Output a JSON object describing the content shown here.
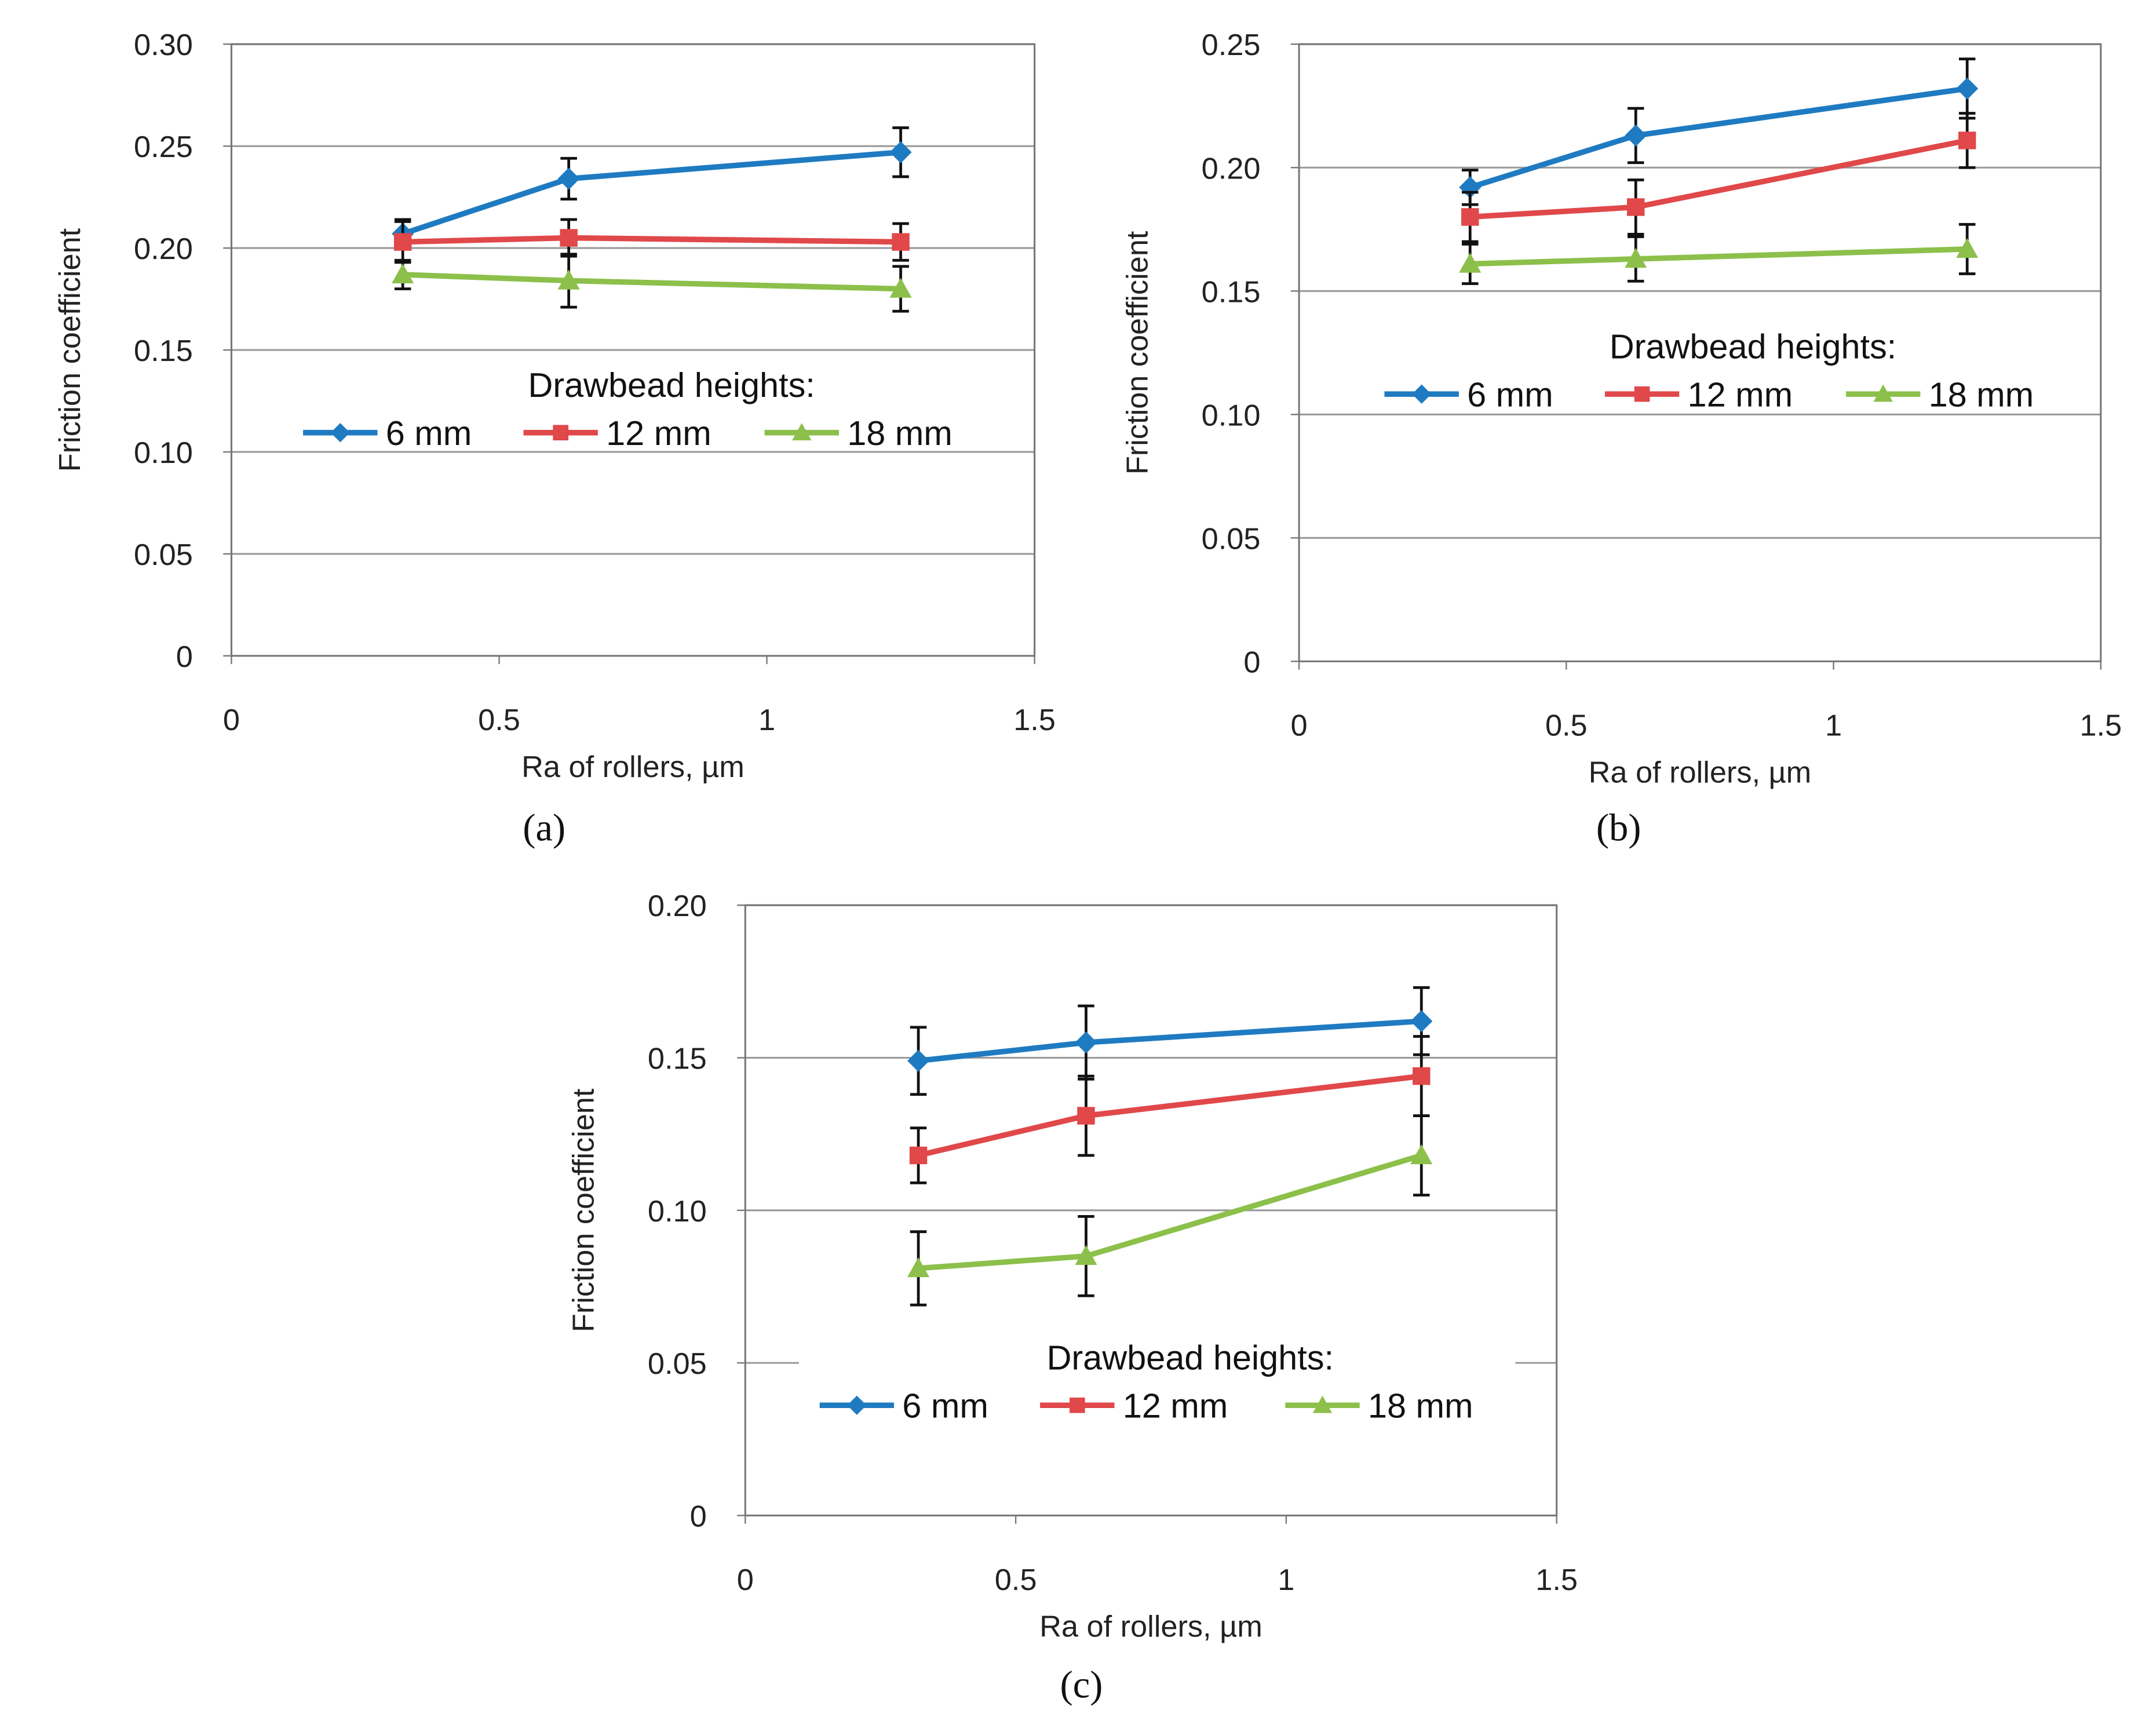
{
  "chart_data": [
    {
      "panel_label": "(a)",
      "type": "line",
      "xlabel": "Ra of rollers, µm",
      "ylabel": "Friction coefficient",
      "xlim": [
        0,
        1.5
      ],
      "ylim": [
        0,
        0.3
      ],
      "xticks": [
        "0",
        "0.5",
        "1",
        "1.5"
      ],
      "yticks": [
        "0",
        "0.05",
        "0.10",
        "0.15",
        "0.20",
        "0.25",
        "0.30"
      ],
      "grid": "horizontal",
      "legend_title": "Drawbead heights:",
      "legend_placement": "center",
      "x": [
        0.32,
        0.63,
        1.25
      ],
      "series": [
        {
          "name": "6 mm",
          "color": "#1f7bc1",
          "marker": "diamond",
          "values": [
            0.207,
            0.234,
            0.247
          ],
          "errors": [
            0.007,
            0.01,
            0.012
          ]
        },
        {
          "name": "12 mm",
          "color": "#e0484a",
          "marker": "square",
          "values": [
            0.203,
            0.205,
            0.203
          ],
          "errors": [
            0.01,
            0.009,
            0.009
          ]
        },
        {
          "name": "18 mm",
          "color": "#8cc04b",
          "marker": "triangle",
          "values": [
            0.187,
            0.184,
            0.18
          ],
          "errors": [
            0.007,
            0.013,
            0.011
          ]
        }
      ]
    },
    {
      "panel_label": "(b)",
      "type": "line",
      "xlabel": "Ra of rollers, µm",
      "ylabel": "Friction coefficient",
      "xlim": [
        0,
        1.5
      ],
      "ylim": [
        0,
        0.25
      ],
      "xticks": [
        "0",
        "0.5",
        "1",
        "1.5"
      ],
      "yticks": [
        "0",
        "0.05",
        "0.10",
        "0.15",
        "0.20",
        "0.25"
      ],
      "grid": "horizontal",
      "legend_title": "Drawbead heights:",
      "legend_placement": "center",
      "x": [
        0.32,
        0.63,
        1.25
      ],
      "series": [
        {
          "name": "6 mm",
          "color": "#1f7bc1",
          "marker": "diamond",
          "values": [
            0.192,
            0.213,
            0.232
          ],
          "errors": [
            0.007,
            0.011,
            0.012
          ]
        },
        {
          "name": "12 mm",
          "color": "#e0484a",
          "marker": "square",
          "values": [
            0.18,
            0.184,
            0.211
          ],
          "errors": [
            0.01,
            0.011,
            0.011
          ]
        },
        {
          "name": "18 mm",
          "color": "#8cc04b",
          "marker": "triangle",
          "values": [
            0.161,
            0.163,
            0.167
          ],
          "errors": [
            0.008,
            0.009,
            0.01
          ]
        }
      ]
    },
    {
      "panel_label": "(c)",
      "type": "line",
      "xlabel": "Ra of rollers, µm",
      "ylabel": "Friction coefficient",
      "xlim": [
        0,
        1.5
      ],
      "ylim": [
        0,
        0.2
      ],
      "xticks": [
        "0",
        "0.5",
        "1",
        "1.5"
      ],
      "yticks": [
        "0",
        "0.05",
        "0.10",
        "0.15",
        "0.20"
      ],
      "grid": "horizontal",
      "legend_title": "Drawbead heights:",
      "legend_placement": "bottom-center",
      "x": [
        0.32,
        0.63,
        1.25
      ],
      "series": [
        {
          "name": "6 mm",
          "color": "#1f7bc1",
          "marker": "diamond",
          "values": [
            0.149,
            0.155,
            0.162
          ],
          "errors": [
            0.011,
            0.012,
            0.011
          ]
        },
        {
          "name": "12 mm",
          "color": "#e0484a",
          "marker": "square",
          "values": [
            0.118,
            0.131,
            0.144
          ],
          "errors": [
            0.009,
            0.013,
            0.013
          ]
        },
        {
          "name": "18 mm",
          "color": "#8cc04b",
          "marker": "triangle",
          "values": [
            0.081,
            0.085,
            0.118
          ],
          "errors": [
            0.012,
            0.013,
            0.013
          ]
        }
      ]
    }
  ]
}
